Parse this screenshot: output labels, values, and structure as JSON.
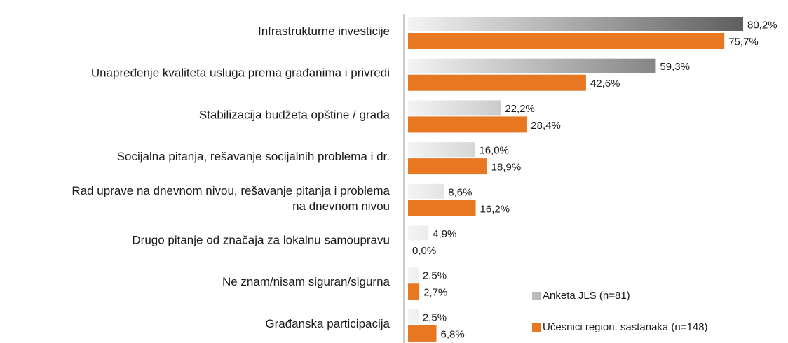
{
  "chart_data": {
    "type": "bar",
    "orientation": "horizontal",
    "categories": [
      "Infrastrukturne investicije",
      "Unapređenje kvaliteta usluga prema građanima i privredi",
      "Stabilizacija budžeta opštine / grada",
      "Socijalna pitanja, rešavanje socijalnih problema i dr.",
      "Rad uprave na dnevnom nivou, rešavanje pitanja i problema\nna dnevnom nivou",
      "Drugo pitanje od značaja za lokalnu samoupravu",
      "Ne znam/nisam siguran/sigurna",
      "Građanska participacija"
    ],
    "series": [
      {
        "name": "Anketa JLS (n=81)",
        "color": "#5e5e5e",
        "values": [
          80.2,
          59.3,
          22.2,
          16.0,
          8.6,
          4.9,
          2.5,
          2.5
        ],
        "value_labels": [
          "80,2%",
          "59,3%",
          "22,2%",
          "16,0%",
          "8,6%",
          "4,9%",
          "2,5%",
          "2,5%"
        ]
      },
      {
        "name": "Učesnici region. sastanaka  (n=148)",
        "color": "#e87722",
        "values": [
          75.7,
          42.6,
          28.4,
          18.9,
          16.2,
          0.0,
          2.7,
          6.8
        ],
        "value_labels": [
          "75,7%",
          "42,6%",
          "28,4%",
          "18,9%",
          "16,2%",
          "0,0%",
          "2,7%",
          "6,8%"
        ]
      }
    ],
    "legend": "lower right"
  }
}
